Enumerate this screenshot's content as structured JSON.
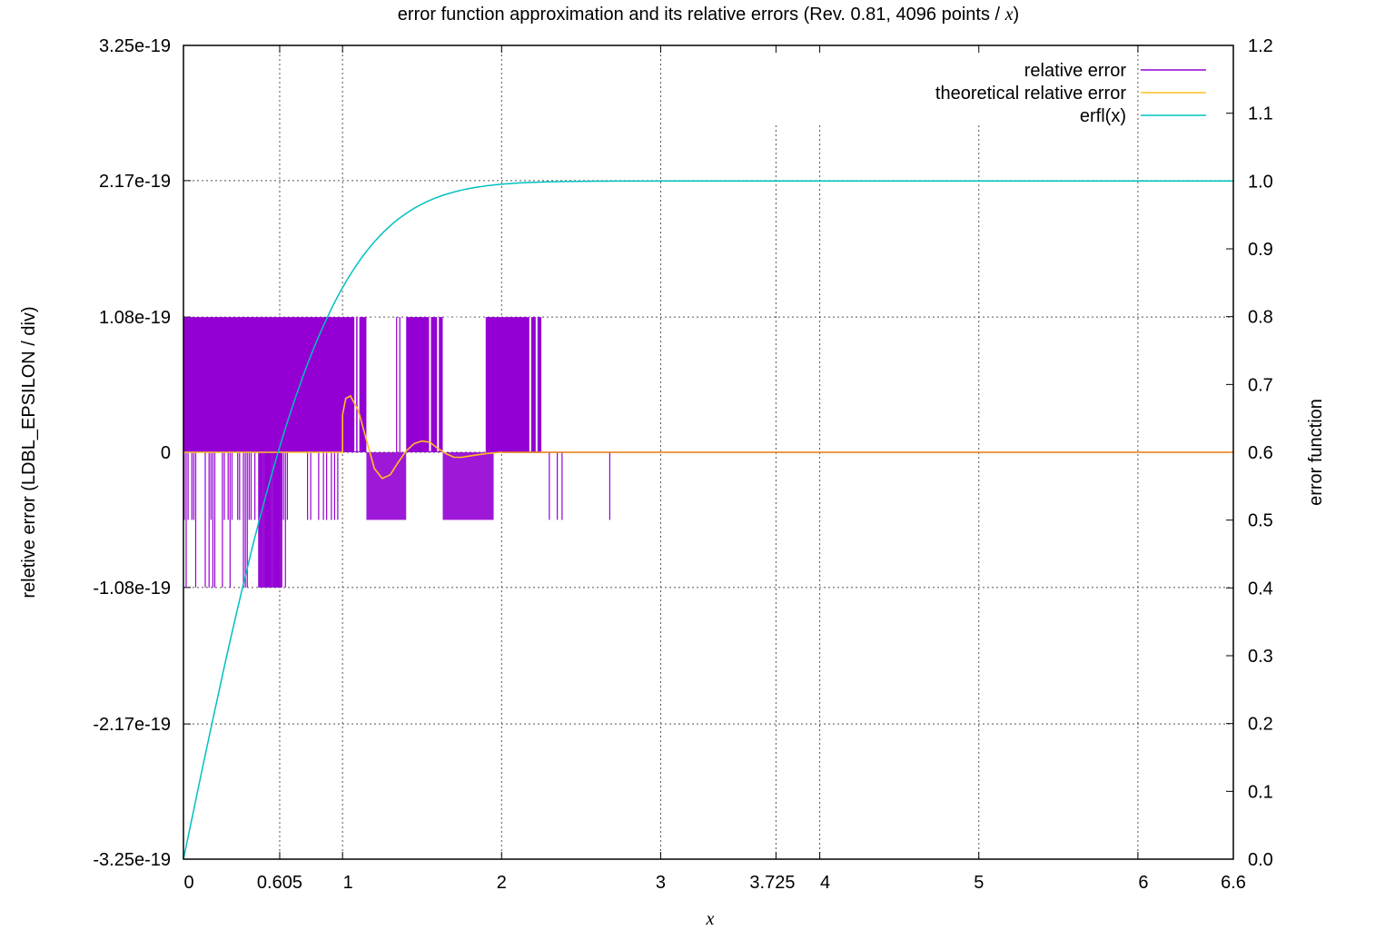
{
  "chart_data": {
    "type": "line",
    "title": "error function approximation and its relative errors (Rev. 0.81, 4096 points / ",
    "title_var": "x",
    "title_close": ")",
    "xlabel": "x",
    "ylabel_left": "reletive error (LDBL_EPSILON / div)",
    "ylabel_right": "error function",
    "xlim": [
      0,
      6.6
    ],
    "ylim_left": [
      -3.25e-19,
      3.25e-19
    ],
    "ylim_right": [
      0.0,
      1.2
    ],
    "x_ticks": [
      {
        "value": 0,
        "label": "0"
      },
      {
        "value": 0.605,
        "label": "0.605"
      },
      {
        "value": 1,
        "label": "1"
      },
      {
        "value": 2,
        "label": "2"
      },
      {
        "value": 3,
        "label": "3"
      },
      {
        "value": 3.725,
        "label": "3.725"
      },
      {
        "value": 4,
        "label": "4"
      },
      {
        "value": 5,
        "label": "5"
      },
      {
        "value": 6,
        "label": "6"
      },
      {
        "value": 6.6,
        "label": "6.6"
      }
    ],
    "y_left_ticks": [
      {
        "value": 3.25e-19,
        "label": "3.25e-19"
      },
      {
        "value": 2.17e-19,
        "label": "2.17e-19"
      },
      {
        "value": 1.08e-19,
        "label": "1.08e-19"
      },
      {
        "value": 0,
        "label": "0"
      },
      {
        "value": -1.08e-19,
        "label": "-1.08e-19"
      },
      {
        "value": -2.17e-19,
        "label": "-2.17e-19"
      },
      {
        "value": -3.25e-19,
        "label": "-3.25e-19"
      }
    ],
    "y_right_ticks": [
      {
        "value": 1.2,
        "label": "1.2"
      },
      {
        "value": 1.1,
        "label": "1.1"
      },
      {
        "value": 1.0,
        "label": "1.0"
      },
      {
        "value": 0.9,
        "label": "0.9"
      },
      {
        "value": 0.8,
        "label": "0.8"
      },
      {
        "value": 0.7,
        "label": "0.7"
      },
      {
        "value": 0.6,
        "label": "0.6"
      },
      {
        "value": 0.5,
        "label": "0.5"
      },
      {
        "value": 0.4,
        "label": "0.4"
      },
      {
        "value": 0.3,
        "label": "0.3"
      },
      {
        "value": 0.2,
        "label": "0.2"
      },
      {
        "value": 0.1,
        "label": "0.1"
      },
      {
        "value": 0.0,
        "label": "0.0"
      }
    ],
    "grid": true,
    "legend_position": "top-right",
    "series": [
      {
        "name": "relative error",
        "axis": "left",
        "color": "#9400d3",
        "style": "impulses",
        "positive_bands": [
          [
            0.0,
            1.15
          ],
          [
            1.4,
            1.63
          ],
          [
            1.9,
            2.25
          ]
        ],
        "positive_value": 1.08e-19,
        "negative_bands_half": [
          [
            1.15,
            1.4
          ],
          [
            1.63,
            1.95
          ]
        ],
        "negative_half_value": -5.4e-20,
        "negative_bands_full": [
          [
            0.0,
            0.65
          ]
        ],
        "negative_full_value": -1.08e-19,
        "isolated_negative_half": [
          0.78,
          0.8,
          0.85,
          0.88,
          0.9,
          0.93,
          0.95,
          0.97,
          2.3,
          2.35,
          2.38,
          2.68
        ],
        "isolated_positive": [
          1.34,
          1.36,
          2.05,
          2.1,
          2.15
        ]
      },
      {
        "name": "theoretical relative error",
        "axis": "left",
        "color": "#ffc020",
        "points": [
          [
            0,
            0
          ],
          [
            0.6,
            0
          ],
          [
            1.0,
            0
          ],
          [
            1.0,
            3e-20
          ],
          [
            1.02,
            4.3e-20
          ],
          [
            1.05,
            4.5e-20
          ],
          [
            1.1,
            3.3e-20
          ],
          [
            1.15,
            1e-20
          ],
          [
            1.2,
            -1.3e-20
          ],
          [
            1.25,
            -2.1e-20
          ],
          [
            1.3,
            -1.8e-20
          ],
          [
            1.35,
            -8e-21
          ],
          [
            1.4,
            1e-21
          ],
          [
            1.45,
            7e-21
          ],
          [
            1.5,
            9e-21
          ],
          [
            1.55,
            8e-21
          ],
          [
            1.6,
            3e-21
          ],
          [
            1.65,
            -1e-21
          ],
          [
            1.7,
            -4e-21
          ],
          [
            1.75,
            -4e-21
          ],
          [
            1.8,
            -3e-21
          ],
          [
            1.9,
            -1e-21
          ],
          [
            2.0,
            0
          ],
          [
            6.6,
            0
          ]
        ]
      },
      {
        "name": "erfl(x)",
        "axis": "right",
        "color": "#00c0c0",
        "function": "erf"
      }
    ]
  }
}
